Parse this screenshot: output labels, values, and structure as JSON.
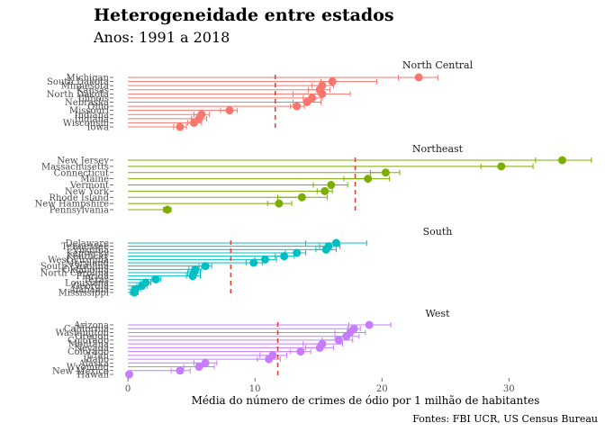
{
  "title": "Heterogeneidade entre estados",
  "subtitle": "Anos: 1991 a 2018",
  "caption": "Fontes: FBI UCR, US Census Bureau",
  "chart_data": {
    "type": "faceted-dot-errorbar",
    "xlabel": "Média do número de crimes de ódio por 1 milhão de habitantes",
    "xlim": [
      -1,
      37
    ],
    "xticks": [
      0,
      10,
      20,
      30
    ],
    "xtick_labels": [
      "0",
      "10",
      "20",
      "30"
    ],
    "colors": {
      "North Central": "#F8766D",
      "Northeast": "#7CAE00",
      "South": "#00BFC4",
      "West": "#C77CFF",
      "mean_line": "#E4433A"
    },
    "facets": [
      {
        "region": "North Central",
        "mean": 11.6,
        "states": [
          {
            "name": "Michigan",
            "value": 22.9,
            "low": 21.3,
            "high": 24.4
          },
          {
            "name": "South Dakota",
            "value": 16.1,
            "low": 15.2,
            "high": 19.6
          },
          {
            "name": "Minnesota",
            "value": 15.3,
            "low": 14.5,
            "high": 16.2
          },
          {
            "name": "Kansas",
            "value": 15.1,
            "low": 14.2,
            "high": 15.9
          },
          {
            "name": "North Dakota",
            "value": 15.3,
            "low": 13.0,
            "high": 17.5
          },
          {
            "name": "Illinois",
            "value": 14.5,
            "low": 13.8,
            "high": 15.3
          },
          {
            "name": "Nebraska",
            "value": 14.1,
            "low": 13.0,
            "high": 15.2
          },
          {
            "name": "Ohio",
            "value": 13.3,
            "low": 12.8,
            "high": 13.9
          },
          {
            "name": "Missouri",
            "value": 8.0,
            "low": 7.3,
            "high": 8.6
          },
          {
            "name": "Indiana",
            "value": 5.8,
            "low": 5.2,
            "high": 6.4
          },
          {
            "name": "Indiana",
            "value": 5.6,
            "low": 5.0,
            "high": 6.2
          },
          {
            "name": "Wisconsin",
            "value": 5.2,
            "low": 4.7,
            "high": 5.8
          },
          {
            "name": "Iowa",
            "value": 4.1,
            "low": 3.6,
            "high": 4.6
          }
        ]
      },
      {
        "region": "Northeast",
        "mean": 17.9,
        "states": [
          {
            "name": "New Jersey",
            "value": 34.2,
            "low": 32.1,
            "high": 36.5
          },
          {
            "name": "Massachusetts",
            "value": 29.4,
            "low": 27.8,
            "high": 31.9
          },
          {
            "name": "Connecticut",
            "value": 20.3,
            "low": 19.1,
            "high": 21.4
          },
          {
            "name": "Maine",
            "value": 18.9,
            "low": 17.0,
            "high": 20.6
          },
          {
            "name": "Vermont",
            "value": 16.0,
            "low": 14.6,
            "high": 17.3
          },
          {
            "name": "New York",
            "value": 15.5,
            "low": 14.9,
            "high": 16.1
          },
          {
            "name": "Rhode Island",
            "value": 13.7,
            "low": 11.8,
            "high": 15.7
          },
          {
            "name": "New Hampshire",
            "value": 11.9,
            "low": 11.0,
            "high": 12.9
          },
          {
            "name": "Pennsylvania",
            "value": 3.1,
            "low": 2.8,
            "high": 3.4
          }
        ]
      },
      {
        "region": "South",
        "mean": 8.1,
        "states": [
          {
            "name": "Delaware",
            "value": 16.4,
            "low": 14.0,
            "high": 18.8
          },
          {
            "name": "Tennessee",
            "value": 15.8,
            "low": 15.1,
            "high": 16.7
          },
          {
            "name": "Virginia",
            "value": 15.6,
            "low": 14.8,
            "high": 16.4
          },
          {
            "name": "Kentucky",
            "value": 13.3,
            "low": 12.4,
            "high": 14.0
          },
          {
            "name": "Kentucky",
            "value": 12.3,
            "low": 11.6,
            "high": 13.1
          },
          {
            "name": "West Virginia",
            "value": 10.8,
            "low": 10.0,
            "high": 11.7
          },
          {
            "name": "Maryland",
            "value": 9.9,
            "low": 9.3,
            "high": 10.6
          },
          {
            "name": "South Carolina",
            "value": 6.1,
            "low": 5.6,
            "high": 6.6
          },
          {
            "name": "Oklahoma",
            "value": 5.3,
            "low": 4.8,
            "high": 5.8
          },
          {
            "name": "North Carolina",
            "value": 5.2,
            "low": 4.7,
            "high": 5.7
          },
          {
            "name": "Florida",
            "value": 5.1,
            "low": 4.6,
            "high": 5.7
          },
          {
            "name": "Texas",
            "value": 2.2,
            "low": 1.9,
            "high": 2.6
          },
          {
            "name": "Louisiana",
            "value": 1.4,
            "low": 1.0,
            "high": 1.8
          },
          {
            "name": "Georgia",
            "value": 1.1,
            "low": 0.7,
            "high": 1.5
          },
          {
            "name": "Alabama",
            "value": 0.6,
            "low": 0.3,
            "high": 1.0
          },
          {
            "name": "Mississippi",
            "value": 0.5,
            "low": 0.2,
            "high": 0.8
          }
        ]
      },
      {
        "region": "West",
        "mean": 11.8,
        "states": [
          {
            "name": "Arizona",
            "value": 19.0,
            "low": 17.4,
            "high": 20.7
          },
          {
            "name": "California",
            "value": 17.8,
            "low": 17.3,
            "high": 18.3
          },
          {
            "name": "Washington",
            "value": 17.5,
            "low": 16.3,
            "high": 18.7
          },
          {
            "name": "Oregon",
            "value": 17.2,
            "low": 16.3,
            "high": 18.2
          },
          {
            "name": "Colorado",
            "value": 16.6,
            "low": 15.3,
            "high": 17.7
          },
          {
            "name": "Montana",
            "value": 15.3,
            "low": 13.8,
            "high": 16.9
          },
          {
            "name": "Nevada",
            "value": 15.1,
            "low": 14.0,
            "high": 16.2
          },
          {
            "name": "Colorado",
            "value": 13.6,
            "low": 12.8,
            "high": 14.4
          },
          {
            "name": "Utah",
            "value": 11.4,
            "low": 10.4,
            "high": 12.5
          },
          {
            "name": "Idaho",
            "value": 11.1,
            "low": 10.2,
            "high": 12.0
          },
          {
            "name": "Alaska",
            "value": 6.1,
            "low": 5.2,
            "high": 7.0
          },
          {
            "name": "Wyoming",
            "value": 5.6,
            "low": 4.4,
            "high": 6.8
          },
          {
            "name": "New Mexico",
            "value": 4.1,
            "low": 3.4,
            "high": 4.9
          },
          {
            "name": "Hawaii",
            "value": 0.1,
            "low": 0.0,
            "high": 0.3
          }
        ]
      }
    ]
  }
}
